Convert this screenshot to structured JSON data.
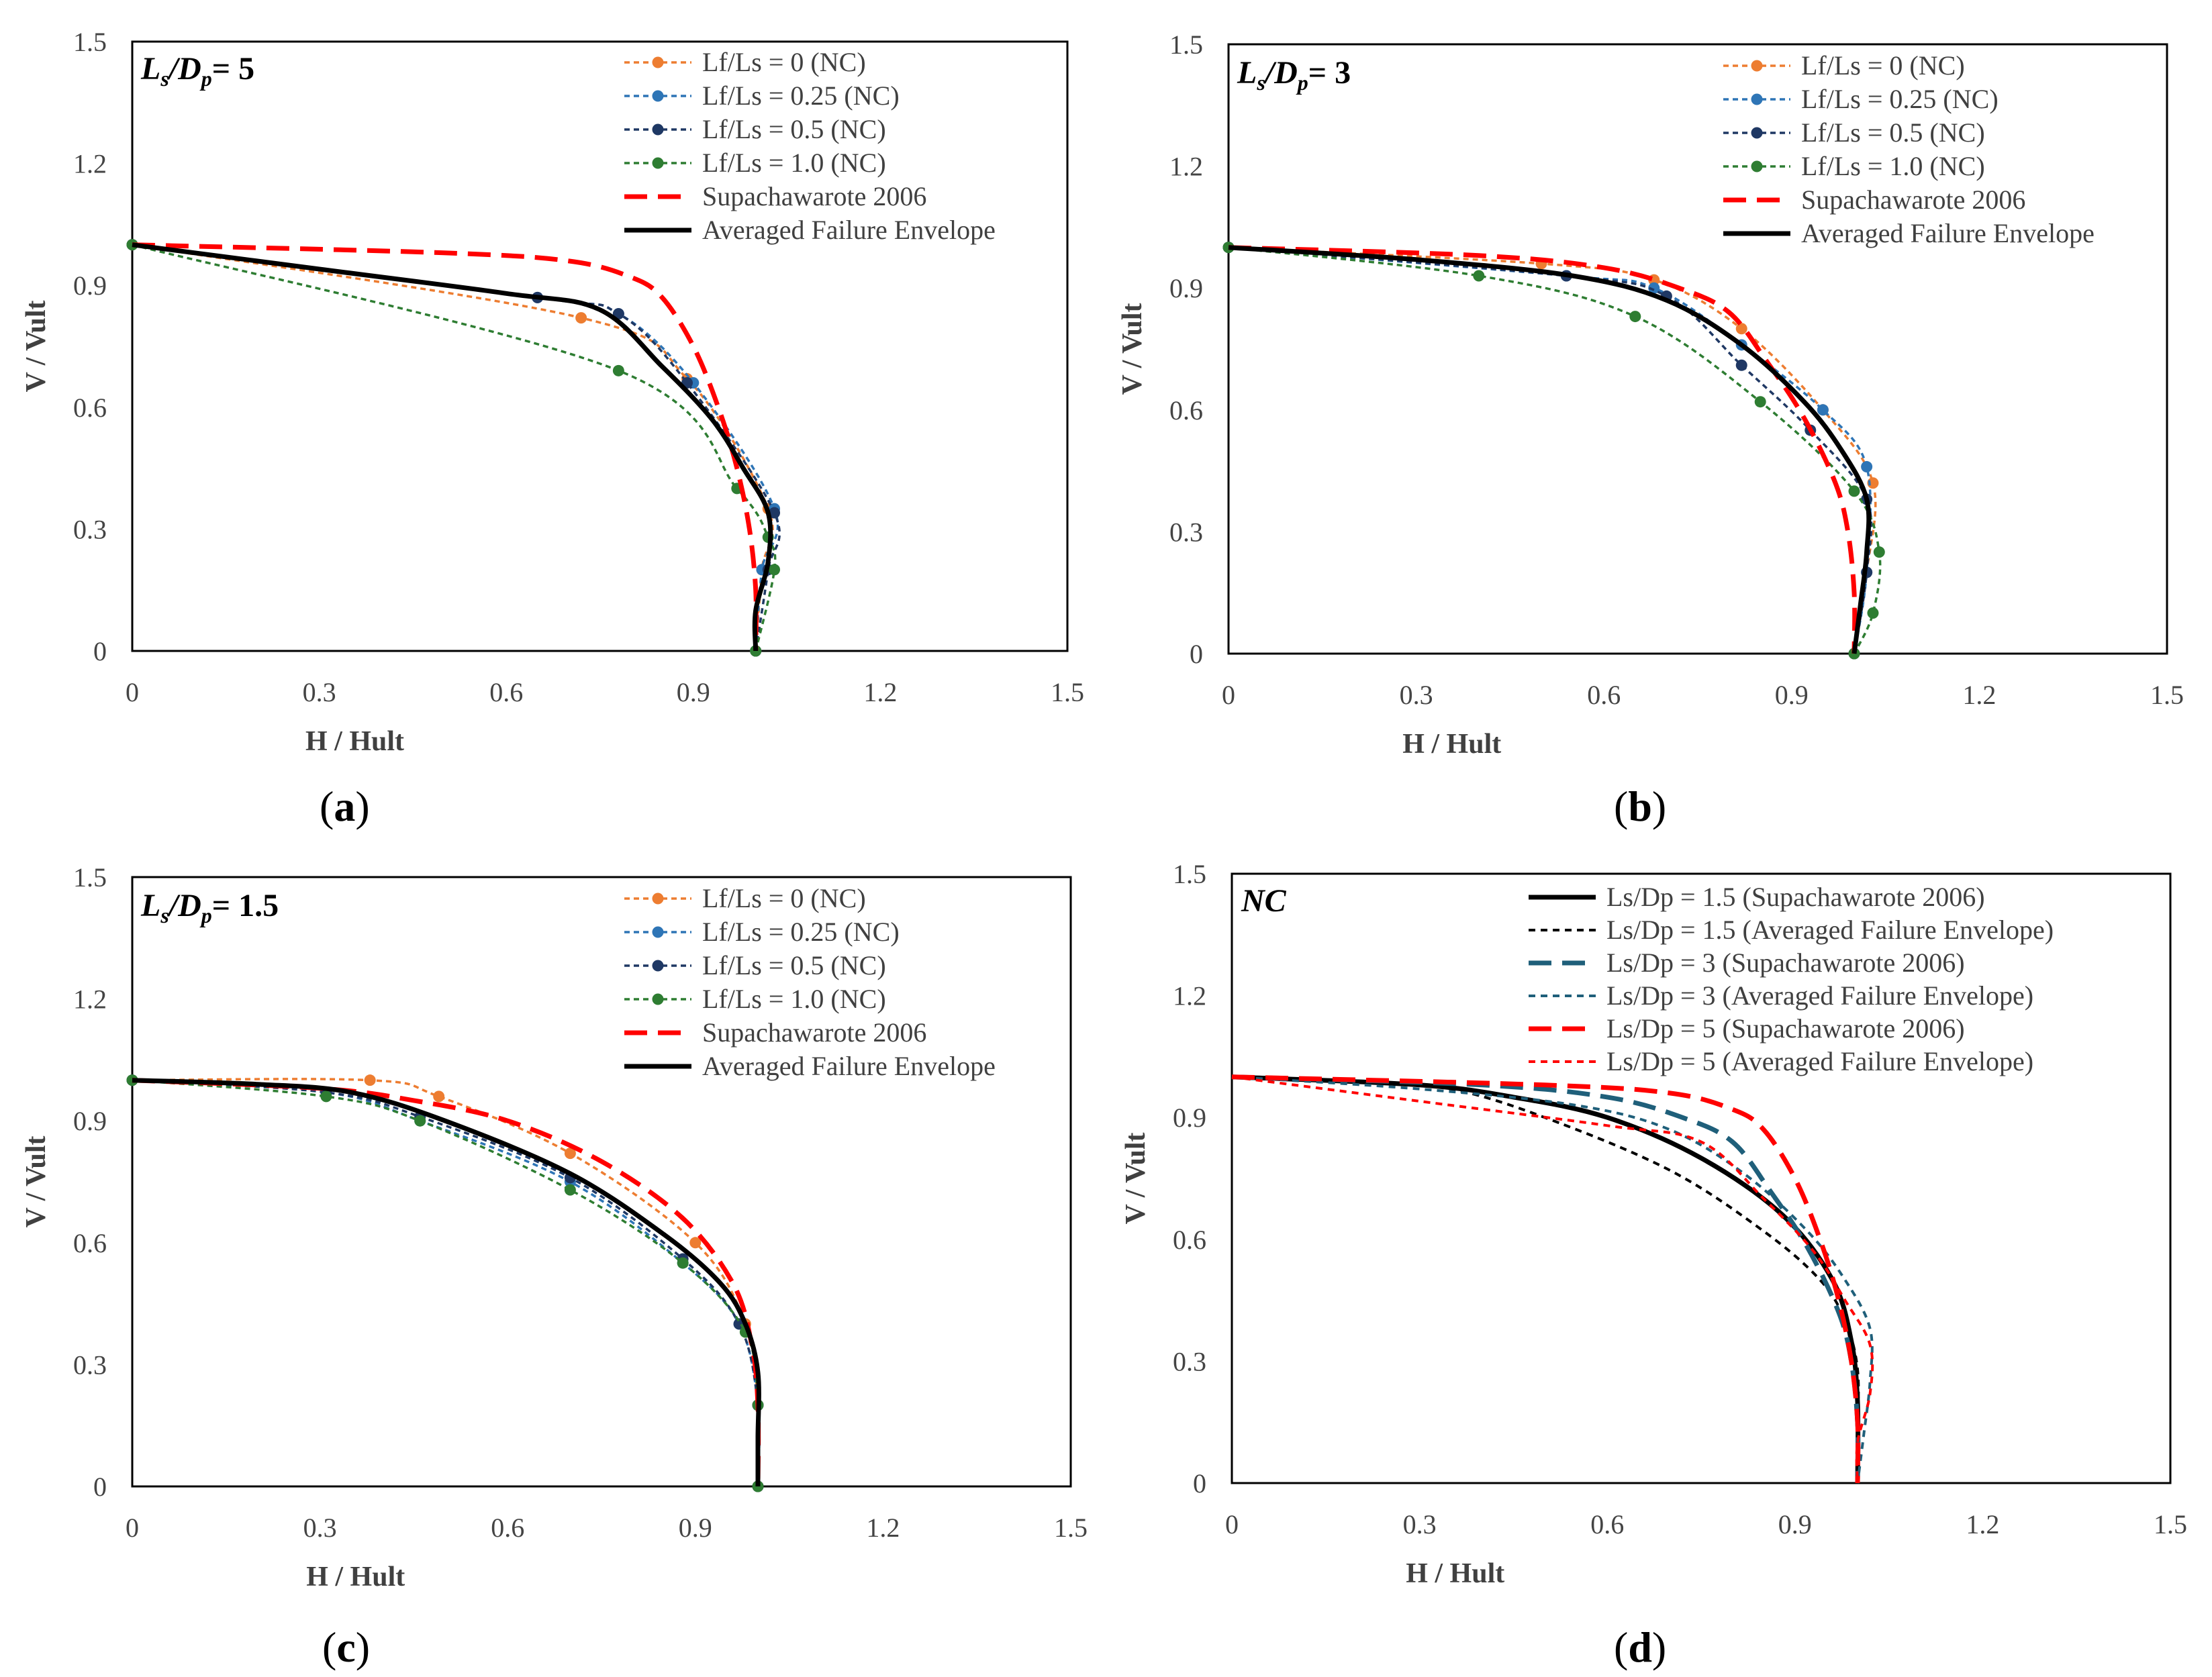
{
  "chart_data": [
    {
      "type": "line",
      "panel_label": "a",
      "title": "Ls/Dp = 5",
      "title_parts": {
        "ls": "L",
        "ls_sub": "s",
        "dp": "D",
        "dp_sub": "p",
        "value": "= 5"
      },
      "xlabel": "H / Hult",
      "ylabel": "V / Vult",
      "xlim": [
        0,
        1.5
      ],
      "ylim": [
        0,
        1.5
      ],
      "xticks": [
        "0",
        "0.3",
        "0.6",
        "0.9",
        "1.2",
        "1.5"
      ],
      "yticks": [
        "0",
        "0.3",
        "0.6",
        "0.9",
        "1.2",
        "1.5"
      ],
      "legend_position": "top-right",
      "series": [
        {
          "name": "Lf/Ls = 0 (NC)",
          "color": "#ed7d31",
          "style": "dashed-marker",
          "x": [
            0,
            0.72,
            0.89,
            1.02,
            1.01,
            1.0
          ],
          "y": [
            1.0,
            0.82,
            0.67,
            0.35,
            0.2,
            0.0
          ]
        },
        {
          "name": "Lf/Ls = 0.25 (NC)",
          "color": "#2e75b6",
          "style": "dashed-marker",
          "x": [
            0,
            0.65,
            0.78,
            0.9,
            1.03,
            1.01,
            1.0
          ],
          "y": [
            1.0,
            0.87,
            0.83,
            0.66,
            0.35,
            0.2,
            0.0
          ]
        },
        {
          "name": "Lf/Ls = 0.5 (NC)",
          "color": "#1f3864",
          "style": "dashed-marker",
          "x": [
            0,
            0.65,
            0.78,
            0.89,
            1.03,
            1.02,
            1.0
          ],
          "y": [
            1.0,
            0.87,
            0.83,
            0.66,
            0.34,
            0.2,
            0.0
          ]
        },
        {
          "name": "Lf/Ls = 1.0 (NC)",
          "color": "#2e7d32",
          "style": "dashed-marker",
          "x": [
            0,
            0.78,
            0.97,
            1.02,
            1.03,
            1.0
          ],
          "y": [
            1.0,
            0.69,
            0.4,
            0.28,
            0.2,
            0.0
          ]
        },
        {
          "name": "Supachawarote 2006",
          "color": "#ff0000",
          "style": "long-dash",
          "x": [
            0,
            0.5,
            0.7,
            0.8,
            0.85,
            0.9,
            0.94,
            0.97,
            0.99,
            1.0,
            1.0
          ],
          "y": [
            1.0,
            0.98,
            0.96,
            0.92,
            0.87,
            0.75,
            0.6,
            0.45,
            0.3,
            0.15,
            0.0
          ]
        },
        {
          "name": "Averaged Failure Envelope",
          "color": "#000000",
          "style": "solid",
          "x": [
            0,
            0.3,
            0.6,
            0.75,
            0.85,
            0.93,
            0.98,
            1.02,
            1.02,
            1.0,
            1.0
          ],
          "y": [
            1.0,
            0.94,
            0.88,
            0.84,
            0.7,
            0.57,
            0.45,
            0.34,
            0.22,
            0.1,
            0.0
          ]
        }
      ]
    },
    {
      "type": "line",
      "panel_label": "b",
      "title": "Ls/Dp = 3",
      "title_parts": {
        "ls": "L",
        "ls_sub": "s",
        "dp": "D",
        "dp_sub": "p",
        "value": "= 3"
      },
      "xlabel": "H / Hult",
      "ylabel": "V / Vult",
      "xlim": [
        0,
        1.5
      ],
      "ylim": [
        0,
        1.5
      ],
      "xticks": [
        "0",
        "0.3",
        "0.6",
        "0.9",
        "1.2",
        "1.5"
      ],
      "yticks": [
        "0",
        "0.3",
        "0.6",
        "0.9",
        "1.2",
        "1.5"
      ],
      "legend_position": "top-right",
      "series": [
        {
          "name": "Lf/Ls = 0 (NC)",
          "color": "#ed7d31",
          "style": "dashed-marker",
          "x": [
            0,
            0.5,
            0.68,
            0.82,
            0.95,
            1.03,
            1.02,
            1.0
          ],
          "y": [
            1.0,
            0.96,
            0.92,
            0.8,
            0.6,
            0.42,
            0.2,
            0.0
          ]
        },
        {
          "name": "Lf/Ls = 0.25 (NC)",
          "color": "#2e75b6",
          "style": "dashed-marker",
          "x": [
            0,
            0.54,
            0.68,
            0.82,
            0.95,
            1.02,
            1.02,
            1.0
          ],
          "y": [
            1.0,
            0.93,
            0.9,
            0.76,
            0.6,
            0.46,
            0.2,
            0.0
          ]
        },
        {
          "name": "Lf/Ls = 0.5 (NC)",
          "color": "#1f3864",
          "style": "dashed-marker",
          "x": [
            0,
            0.54,
            0.7,
            0.82,
            0.93,
            1.02,
            1.02,
            1.0
          ],
          "y": [
            1.0,
            0.93,
            0.88,
            0.71,
            0.55,
            0.38,
            0.2,
            0.0
          ]
        },
        {
          "name": "Lf/Ls = 1.0 (NC)",
          "color": "#2e7d32",
          "style": "dashed-marker",
          "x": [
            0,
            0.4,
            0.65,
            0.85,
            1.0,
            1.04,
            1.03,
            1.0
          ],
          "y": [
            1.0,
            0.93,
            0.83,
            0.62,
            0.4,
            0.25,
            0.1,
            0.0
          ]
        },
        {
          "name": "Supachawarote 2006",
          "color": "#ff0000",
          "style": "long-dash",
          "x": [
            0,
            0.4,
            0.6,
            0.72,
            0.8,
            0.86,
            0.92,
            0.97,
            0.99,
            1.0,
            1.0
          ],
          "y": [
            1.0,
            0.98,
            0.95,
            0.9,
            0.84,
            0.72,
            0.58,
            0.42,
            0.3,
            0.15,
            0.0
          ]
        },
        {
          "name": "Averaged Failure Envelope",
          "color": "#000000",
          "style": "solid",
          "x": [
            0,
            0.3,
            0.55,
            0.7,
            0.82,
            0.92,
            0.98,
            1.02,
            1.02,
            1.01,
            1.0
          ],
          "y": [
            1.0,
            0.97,
            0.93,
            0.87,
            0.76,
            0.62,
            0.5,
            0.38,
            0.25,
            0.12,
            0.0
          ]
        }
      ]
    },
    {
      "type": "line",
      "panel_label": "c",
      "title": "Ls/Dp = 1.5",
      "title_parts": {
        "ls": "L",
        "ls_sub": "s",
        "dp": "D",
        "dp_sub": "p",
        "value": "= 1.5"
      },
      "xlabel": "H / Hult",
      "ylabel": "V / Vult",
      "xlim": [
        0,
        1.5
      ],
      "ylim": [
        0,
        1.5
      ],
      "xticks": [
        "0",
        "0.3",
        "0.6",
        "0.9",
        "1.2",
        "1.5"
      ],
      "yticks": [
        "0",
        "0.3",
        "0.6",
        "0.9",
        "1.2",
        "1.5"
      ],
      "legend_position": "top-right",
      "series": [
        {
          "name": "Lf/Ls = 0 (NC)",
          "color": "#ed7d31",
          "style": "dashed-marker",
          "x": [
            0,
            0.38,
            0.49,
            0.7,
            0.9,
            0.98,
            1.0,
            1.0
          ],
          "y": [
            1.0,
            1.0,
            0.96,
            0.82,
            0.6,
            0.4,
            0.2,
            0.0
          ]
        },
        {
          "name": "Lf/Ls = 0.25 (NC)",
          "color": "#2e75b6",
          "style": "dashed-marker",
          "x": [
            0,
            0.31,
            0.46,
            0.7,
            0.88,
            0.97,
            1.0,
            1.0
          ],
          "y": [
            1.0,
            0.97,
            0.9,
            0.75,
            0.55,
            0.4,
            0.2,
            0.0
          ]
        },
        {
          "name": "Lf/Ls = 0.5 (NC)",
          "color": "#1f3864",
          "style": "dashed-marker",
          "x": [
            0,
            0.31,
            0.46,
            0.7,
            0.88,
            0.97,
            1.0,
            1.0
          ],
          "y": [
            1.0,
            0.97,
            0.91,
            0.76,
            0.56,
            0.4,
            0.2,
            0.0
          ]
        },
        {
          "name": "Lf/Ls = 1.0 (NC)",
          "color": "#2e7d32",
          "style": "dashed-marker",
          "x": [
            0,
            0.31,
            0.46,
            0.7,
            0.88,
            0.98,
            1.0,
            1.0
          ],
          "y": [
            1.0,
            0.96,
            0.9,
            0.73,
            0.55,
            0.38,
            0.2,
            0.0
          ]
        },
        {
          "name": "Supachawarote 2006",
          "color": "#ff0000",
          "style": "long-dash",
          "x": [
            0,
            0.3,
            0.45,
            0.6,
            0.75,
            0.88,
            0.96,
            0.99,
            1.0,
            1.0
          ],
          "y": [
            1.0,
            0.98,
            0.95,
            0.9,
            0.8,
            0.66,
            0.5,
            0.35,
            0.2,
            0.0
          ]
        },
        {
          "name": "Averaged Failure Envelope",
          "color": "#000000",
          "style": "solid",
          "x": [
            0,
            0.2,
            0.35,
            0.5,
            0.7,
            0.85,
            0.94,
            0.98,
            1.0,
            1.0,
            1.0
          ],
          "y": [
            1.0,
            0.99,
            0.97,
            0.9,
            0.77,
            0.62,
            0.5,
            0.4,
            0.28,
            0.12,
            0.0
          ]
        }
      ]
    },
    {
      "type": "line",
      "panel_label": "d",
      "title": "NC",
      "xlabel": "H / Hult",
      "ylabel": "V / Vult",
      "xlim": [
        0,
        1.5
      ],
      "ylim": [
        0,
        1.5
      ],
      "xticks": [
        "0",
        "0.3",
        "0.6",
        "0.9",
        "1.2",
        "1.5"
      ],
      "yticks": [
        "0",
        "0.3",
        "0.6",
        "0.9",
        "1.2",
        "1.5"
      ],
      "legend_position": "top-right",
      "series": [
        {
          "name": "Ls/Dp = 1.5 (Supachawarote 2006)",
          "color": "#000000",
          "style": "solid",
          "x": [
            0,
            0.3,
            0.45,
            0.6,
            0.75,
            0.88,
            0.96,
            0.99,
            1.0,
            1.0
          ],
          "y": [
            1.0,
            0.98,
            0.95,
            0.9,
            0.8,
            0.66,
            0.5,
            0.35,
            0.2,
            0.0
          ]
        },
        {
          "name": "Ls/Dp = 1.5 (Averaged Failure Envelope)",
          "color": "#000000",
          "style": "dashed",
          "x": [
            0,
            0.2,
            0.35,
            0.5,
            0.7,
            0.85,
            0.94,
            0.98,
            1.0,
            1.0,
            1.0
          ],
          "y": [
            1.0,
            0.99,
            0.97,
            0.9,
            0.77,
            0.62,
            0.5,
            0.4,
            0.28,
            0.12,
            0.0
          ]
        },
        {
          "name": "Ls/Dp = 3 (Supachawarote 2006)",
          "color": "#1f5f7a",
          "style": "long-dash",
          "x": [
            0,
            0.4,
            0.6,
            0.72,
            0.8,
            0.86,
            0.92,
            0.97,
            0.99,
            1.0,
            1.0
          ],
          "y": [
            1.0,
            0.98,
            0.95,
            0.9,
            0.84,
            0.72,
            0.58,
            0.42,
            0.3,
            0.15,
            0.0
          ]
        },
        {
          "name": "Ls/Dp = 3 (Averaged Failure Envelope)",
          "color": "#1f5f7a",
          "style": "dashed",
          "x": [
            0,
            0.3,
            0.55,
            0.7,
            0.82,
            0.92,
            0.98,
            1.02,
            1.02,
            1.01,
            1.0
          ],
          "y": [
            1.0,
            0.97,
            0.93,
            0.87,
            0.76,
            0.62,
            0.5,
            0.38,
            0.25,
            0.12,
            0.0
          ]
        },
        {
          "name": "Ls/Dp = 5 (Supachawarote 2006)",
          "color": "#ff0000",
          "style": "long-dash",
          "x": [
            0,
            0.5,
            0.7,
            0.8,
            0.85,
            0.9,
            0.94,
            0.97,
            0.99,
            1.0,
            1.0
          ],
          "y": [
            1.0,
            0.98,
            0.96,
            0.92,
            0.87,
            0.75,
            0.6,
            0.45,
            0.3,
            0.15,
            0.0
          ]
        },
        {
          "name": "Ls/Dp = 5 (Averaged Failure Envelope)",
          "color": "#ff0000",
          "style": "dashed",
          "x": [
            0,
            0.3,
            0.6,
            0.75,
            0.85,
            0.93,
            0.98,
            1.02,
            1.02,
            1.0,
            1.0
          ],
          "y": [
            1.0,
            0.94,
            0.88,
            0.84,
            0.7,
            0.57,
            0.45,
            0.34,
            0.22,
            0.1,
            0.0
          ]
        }
      ]
    }
  ]
}
